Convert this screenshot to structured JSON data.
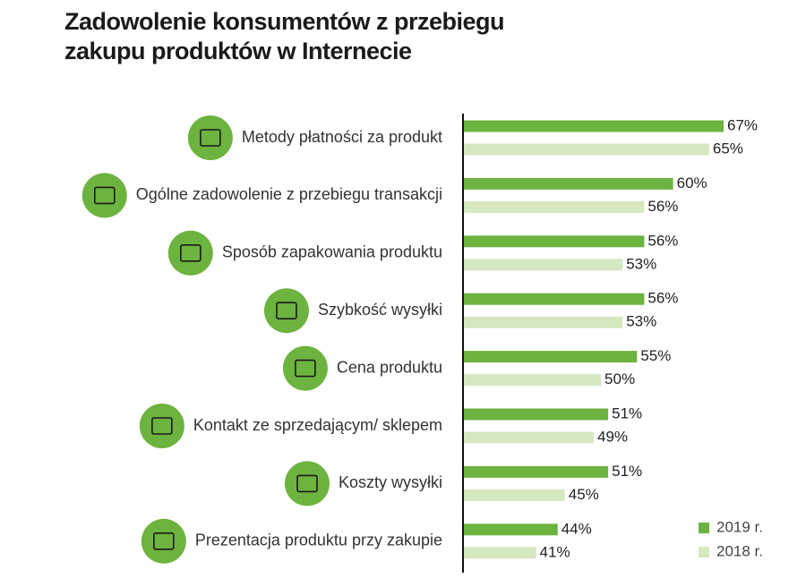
{
  "chart_data": {
    "type": "hbar",
    "title": "Zadowolenie konsumentów z przebiegu zakupu produktów w Internecie",
    "categories": [
      "Metody płatności za produkt",
      "Ogólne zadowolenie z przebiegu transakcji",
      "Sposób zapakowania produktu",
      "Szybkość wysyłki",
      "Cena produktu",
      "Kontakt ze sprzedającym/ sklepem",
      "Koszty wysyłki",
      "Prezentacja produktu przy zakupie"
    ],
    "series": [
      {
        "name": "2019 r.",
        "color": "#6db33f",
        "values": [
          67,
          60,
          56,
          56,
          55,
          51,
          51,
          44
        ],
        "value_labels": [
          "67%",
          "60%",
          "56%",
          "56%",
          "55%",
          "51%",
          "51%",
          "44%"
        ]
      },
      {
        "name": "2018 r.",
        "color": "#d5e8c0",
        "values": [
          65,
          56,
          53,
          53,
          50,
          49,
          45,
          41
        ],
        "value_labels": [
          "65%",
          "56%",
          "53%",
          "53%",
          "50%",
          "49%",
          "45%",
          "41%"
        ]
      }
    ],
    "xlim": [
      31,
      70
    ],
    "legend": "bottom-right"
  }
}
